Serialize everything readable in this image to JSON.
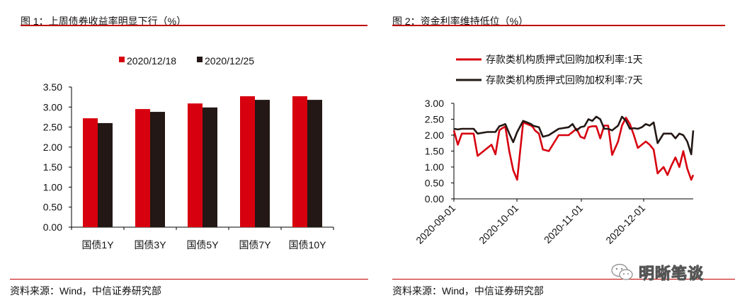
{
  "figure1": {
    "title": "图 1：上周债券收益率明显下行（%）",
    "source": "资料来源：Wind，中信证券研究部"
  },
  "figure2": {
    "title": "图 2：资金利率维持低位（%）",
    "source": "资料来源：Wind，中信证券研究部"
  },
  "watermark": {
    "text": "明晰笔谈",
    "icon": "wechat-icon"
  },
  "colors": {
    "red": "#d7000f",
    "black": "#231815",
    "rule": "#c00000"
  },
  "chart_data": [
    {
      "type": "bar",
      "title": "图 1：上周债券收益率明显下行（%）",
      "categories": [
        "国债1Y",
        "国债3Y",
        "国债5Y",
        "国债7Y",
        "国债10Y"
      ],
      "series": [
        {
          "name": "2020/12/18",
          "color": "#d7000f",
          "values": [
            2.72,
            2.95,
            3.09,
            3.27,
            3.27
          ]
        },
        {
          "name": "2020/12/25",
          "color": "#231815",
          "values": [
            2.6,
            2.88,
            2.99,
            3.18,
            3.18
          ]
        }
      ],
      "yticks": [
        "0.00",
        "0.50",
        "1.00",
        "1.50",
        "2.00",
        "2.50",
        "3.00",
        "3.50"
      ],
      "ylim": [
        0,
        3.5
      ],
      "xlabel": "",
      "ylabel": "",
      "grid": false,
      "legend_position": "top"
    },
    {
      "type": "line",
      "title": "图 2：资金利率维持低位（%）",
      "x_ticks": [
        "2020-09-01",
        "2020-10-01",
        "2020-11-01",
        "2020-12-01"
      ],
      "x_range": [
        "2020-09-01",
        "2020-12-25"
      ],
      "yticks": [
        "0.00",
        "0.50",
        "1.00",
        "1.50",
        "2.00",
        "2.50",
        "3.00"
      ],
      "ylim": [
        0,
        3.0
      ],
      "grid": false,
      "legend_position": "top",
      "series": [
        {
          "name": "存款类机构质押式回购加权利率:1天",
          "color": "#d7000f",
          "x_index": [
            0,
            2,
            4,
            6,
            10,
            12,
            15,
            17,
            19,
            21,
            23,
            24,
            26,
            28,
            30,
            32,
            35,
            37,
            39,
            40,
            41,
            43,
            45,
            48,
            53,
            58,
            60,
            62,
            64,
            66,
            68,
            70,
            72,
            74,
            76,
            78,
            80,
            83,
            85,
            87,
            89,
            91,
            93,
            95,
            97,
            99,
            101,
            103,
            106,
            108,
            110,
            112,
            114,
            116,
            118,
            120,
            121
          ],
          "values": [
            2.15,
            1.7,
            2.05,
            2.05,
            2.05,
            1.35,
            1.5,
            1.6,
            1.7,
            1.4,
            2.15,
            2.2,
            2.27,
            1.5,
            0.9,
            0.6,
            2.4,
            2.35,
            2.3,
            2.25,
            2.15,
            2.05,
            1.55,
            1.5,
            2.0,
            2.0,
            2.1,
            2.2,
            1.95,
            1.9,
            2.25,
            2.28,
            2.28,
            1.9,
            2.3,
            2.3,
            1.38,
            1.8,
            2.3,
            2.55,
            2.35,
            2.0,
            1.6,
            1.7,
            1.8,
            1.7,
            1.55,
            0.8,
            1.0,
            0.75,
            1.05,
            1.3,
            1.0,
            1.5,
            0.95,
            0.6,
            0.75
          ]
        },
        {
          "name": "存款类机构质押式回购加权利率:7天",
          "color": "#231815",
          "x_index": [
            0,
            2,
            4,
            6,
            10,
            12,
            15,
            17,
            19,
            21,
            23,
            24,
            26,
            28,
            30,
            32,
            35,
            37,
            39,
            40,
            41,
            43,
            45,
            48,
            53,
            58,
            60,
            62,
            64,
            66,
            68,
            70,
            72,
            74,
            76,
            78,
            80,
            83,
            85,
            87,
            89,
            91,
            93,
            95,
            97,
            99,
            101,
            103,
            106,
            108,
            110,
            112,
            114,
            116,
            118,
            120,
            121
          ],
          "values": [
            2.2,
            2.18,
            2.2,
            2.2,
            2.2,
            2.05,
            2.08,
            2.1,
            2.1,
            2.1,
            2.28,
            2.3,
            2.35,
            2.05,
            1.78,
            2.1,
            2.45,
            2.4,
            2.35,
            2.3,
            2.28,
            2.25,
            1.95,
            2.0,
            2.2,
            2.25,
            2.35,
            2.15,
            2.25,
            2.28,
            2.5,
            2.45,
            2.58,
            2.5,
            2.2,
            2.2,
            2.15,
            2.3,
            2.58,
            2.45,
            2.2,
            2.22,
            2.2,
            2.25,
            2.35,
            2.3,
            2.4,
            1.75,
            2.05,
            2.05,
            2.05,
            1.9,
            2.05,
            2.0,
            1.8,
            1.4,
            2.15
          ]
        }
      ]
    }
  ]
}
